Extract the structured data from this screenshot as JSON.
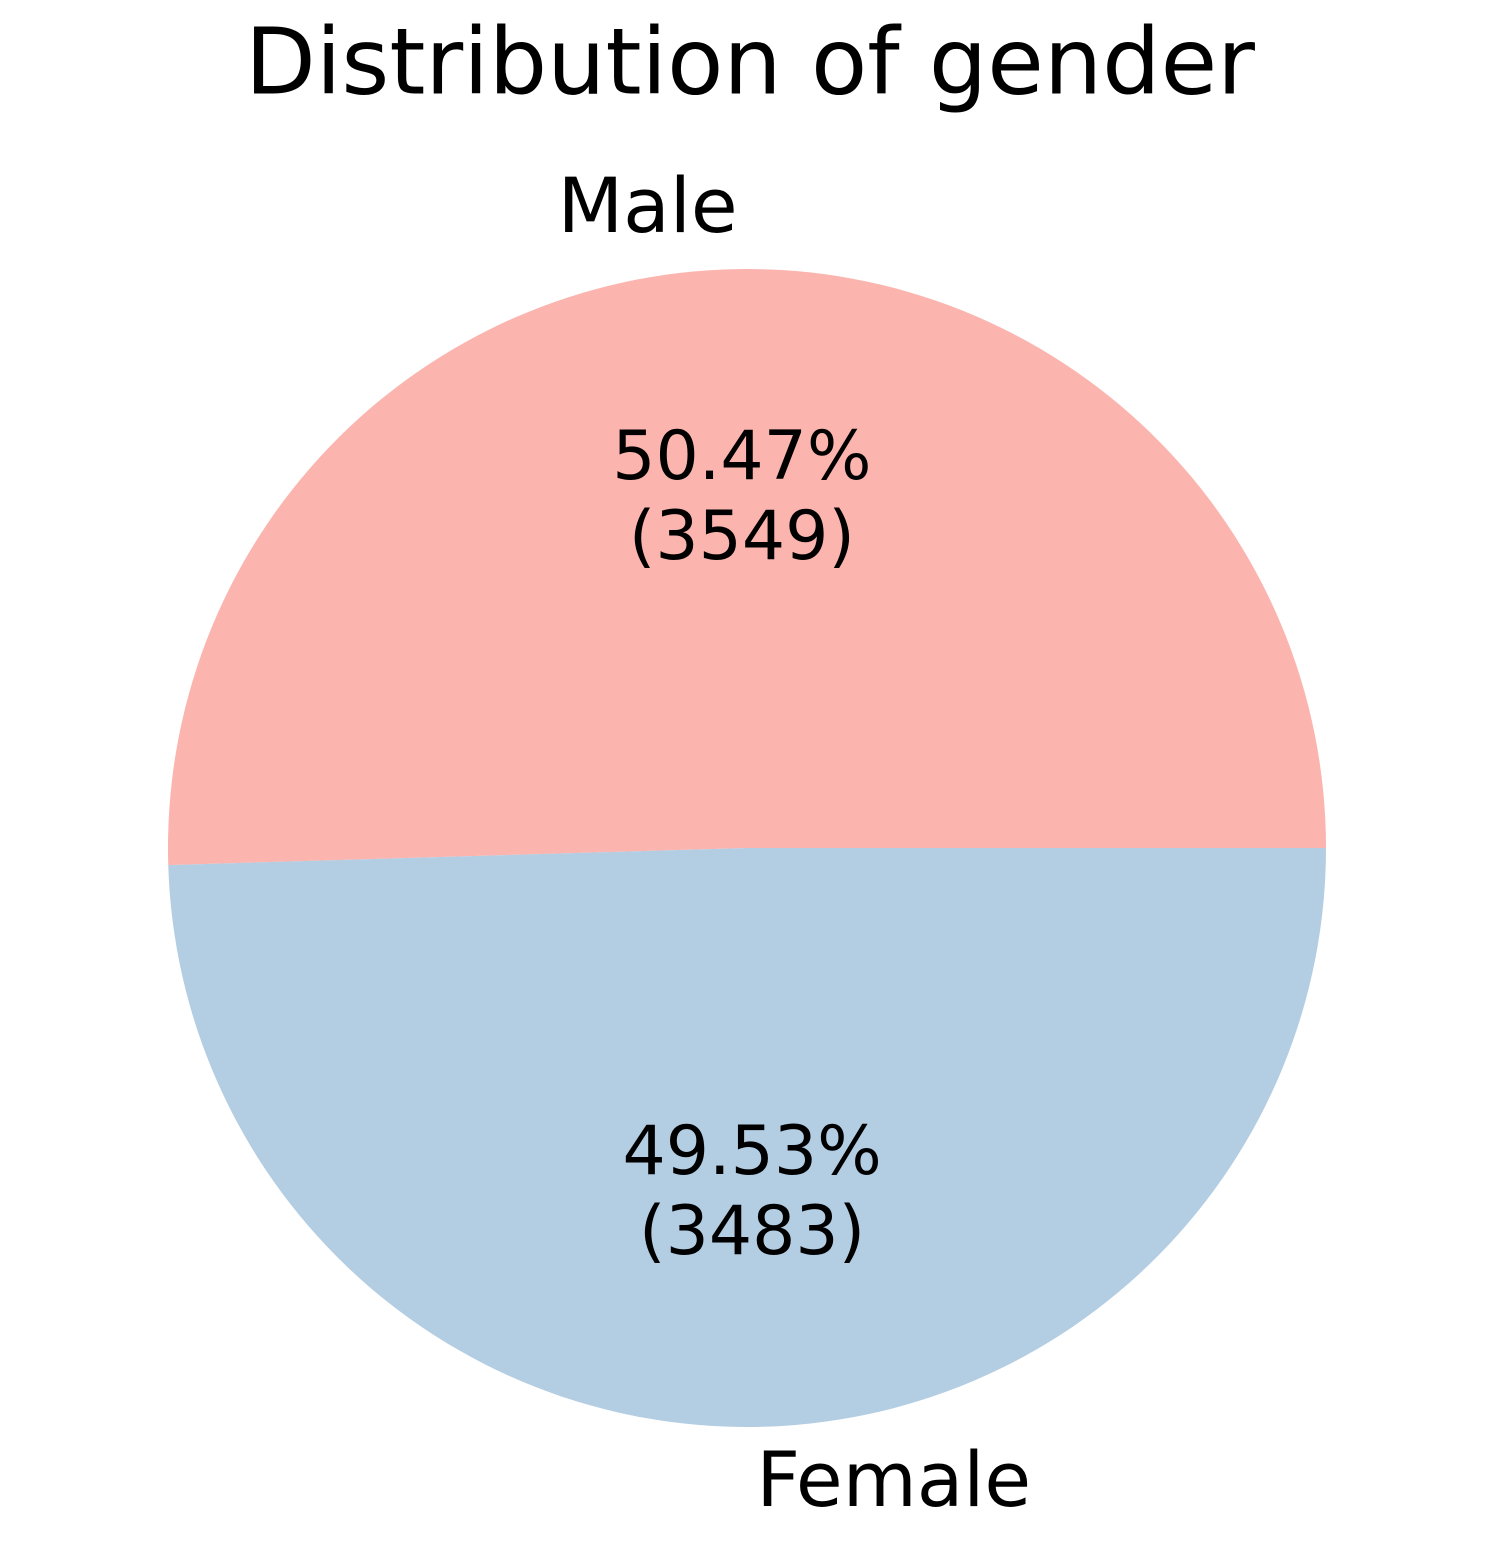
{
  "chart_data": {
    "type": "pie",
    "title": "Distribution of gender",
    "categories": [
      "Male",
      "Female"
    ],
    "values": [
      3549,
      3483
    ],
    "value_labels": [
      [
        "50.47%",
        "(3549)"
      ],
      [
        "49.53%",
        "(3483)"
      ]
    ],
    "colors": [
      "#fbb4ae",
      "#b3cde3"
    ]
  }
}
